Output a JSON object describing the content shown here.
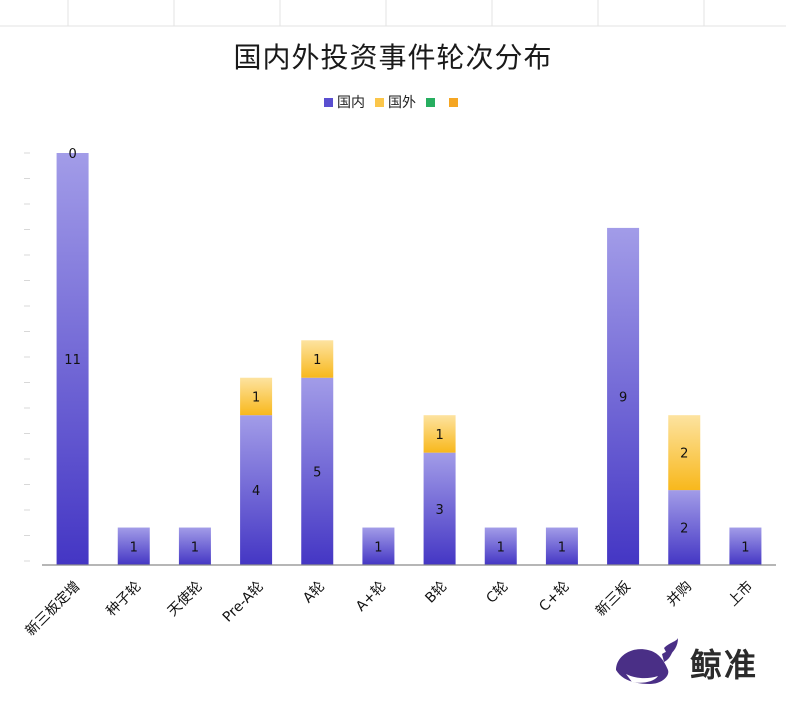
{
  "chart_data": {
    "type": "bar",
    "stacked": true,
    "title": "国内外投资事件轮次分布",
    "categories": [
      "新三板定增",
      "种子轮",
      "天使轮",
      "Pre-A轮",
      "A轮",
      "A+轮",
      "B轮",
      "C轮",
      "C+轮",
      "新三板",
      "并购",
      "上市"
    ],
    "series": [
      {
        "name": "国内",
        "values": [
          11,
          1,
          1,
          4,
          5,
          1,
          3,
          1,
          1,
          9,
          2,
          1
        ],
        "labels": [
          "11",
          "1",
          "1",
          "4",
          "5",
          "1",
          "3",
          "1",
          "1",
          "9",
          "2",
          "1"
        ]
      },
      {
        "name": "国外",
        "values": [
          0,
          0,
          0,
          1,
          1,
          0,
          1,
          0,
          0,
          0,
          2,
          0
        ],
        "labels": [
          "0",
          "",
          "",
          "1",
          "1",
          "",
          "1",
          "",
          "",
          "",
          "2",
          ""
        ]
      },
      {
        "name": "",
        "values": [
          0,
          0,
          0,
          0,
          0,
          0,
          0,
          0,
          0,
          0,
          0,
          0
        ],
        "labels": [
          "",
          "",
          "",
          "",
          "",
          "",
          "",
          "",
          "",
          "",
          "",
          ""
        ]
      },
      {
        "name": "",
        "values": [
          0,
          0,
          0,
          0,
          0,
          0,
          0,
          0,
          0,
          0,
          0,
          0
        ],
        "labels": [
          "",
          "",
          "",
          "",
          "",
          "",
          "",
          "",
          "",
          "",
          "",
          ""
        ]
      }
    ],
    "colors": [
      "#5a4fd0",
      "#fbc64a",
      "#27ae60",
      "#f5a623"
    ],
    "ylim": [
      0,
      11
    ],
    "legend": "top"
  },
  "logo": {
    "text": "鲸准",
    "icon": "whale-icon"
  }
}
